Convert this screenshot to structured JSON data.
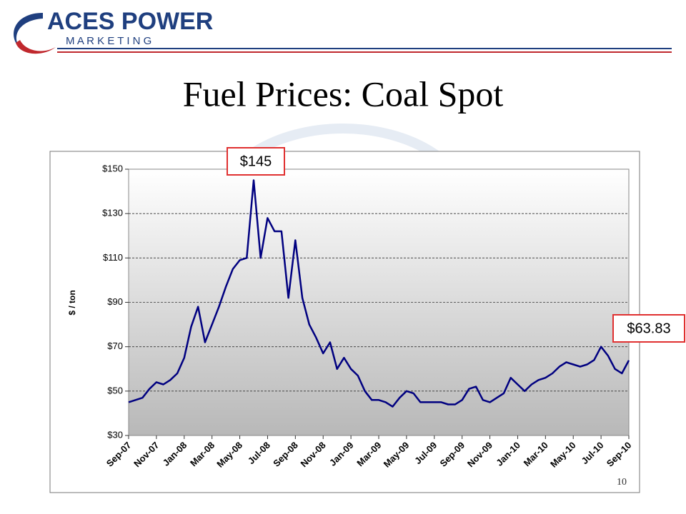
{
  "logo": {
    "name": "ACES POWER",
    "tagline": "M A R K E T I N G"
  },
  "title": "Fuel Prices: Coal Spot",
  "page_number": "10",
  "chart_data": {
    "type": "line",
    "y_label": "$ / ton",
    "categories": [
      "Sep-07",
      null,
      null,
      null,
      "Nov-07",
      null,
      null,
      null,
      "Jan-08",
      null,
      null,
      null,
      "Mar-08",
      null,
      null,
      null,
      "May-08",
      null,
      null,
      null,
      "Jul-08",
      null,
      null,
      null,
      "Sep-08",
      null,
      null,
      null,
      "Nov-08",
      null,
      null,
      null,
      "Jan-09",
      null,
      null,
      null,
      "Mar-09",
      null,
      null,
      null,
      "May-09",
      null,
      null,
      null,
      "Jul-09",
      null,
      null,
      null,
      "Sep-09",
      null,
      null,
      null,
      "Nov-09",
      null,
      null,
      null,
      "Jan-10",
      null,
      null,
      null,
      "Mar-10",
      null,
      null,
      null,
      "May-10",
      null,
      null,
      null,
      "Jul-10",
      null,
      null,
      null,
      "Sep-10"
    ],
    "series": [
      {
        "name": "Coal Spot",
        "color": "#000080",
        "values": [
          45,
          46,
          47,
          51,
          54,
          53,
          55,
          58,
          65,
          79,
          88,
          72,
          80,
          88,
          97,
          105,
          109,
          110,
          145,
          110,
          128,
          122,
          122,
          92,
          118,
          92,
          80,
          74,
          67,
          72,
          60,
          65,
          60,
          57,
          50,
          46,
          46,
          45,
          43,
          47,
          50,
          49,
          45,
          45,
          45,
          45,
          44,
          44,
          46,
          51,
          52,
          46,
          45,
          47,
          49,
          56,
          53,
          50,
          53,
          55,
          56,
          58,
          61,
          63,
          62,
          61,
          62,
          64,
          70,
          66,
          60,
          58,
          63.83
        ]
      }
    ],
    "ylim": [
      30,
      150
    ],
    "yticks": [
      {
        "value": 30,
        "label": "$30"
      },
      {
        "value": 50,
        "label": "$50"
      },
      {
        "value": 70,
        "label": "$70"
      },
      {
        "value": 90,
        "label": "$90"
      },
      {
        "value": 110,
        "label": "$110"
      },
      {
        "value": 130,
        "label": "$130"
      },
      {
        "value": 150,
        "label": "$150"
      }
    ],
    "grid": true,
    "annotations": [
      {
        "text": "$145"
      },
      {
        "text": "$63.83"
      }
    ]
  }
}
